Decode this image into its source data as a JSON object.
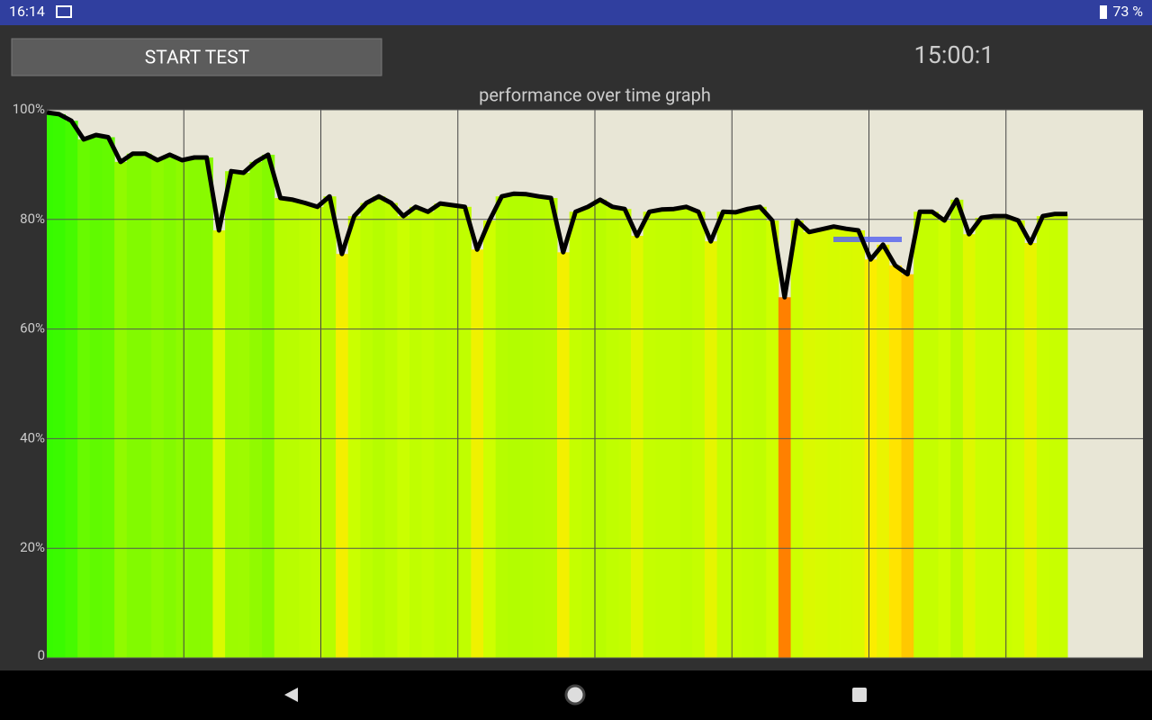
{
  "status_bar": {
    "time": "16:14",
    "battery": "73 %"
  },
  "button": {
    "label": "START TEST"
  },
  "timer": "15:00:1",
  "chart_data": {
    "type": "area-line",
    "title": "performance over time graph",
    "ylim": [
      0,
      100
    ],
    "yticks": [
      0,
      {
        "value": 20,
        "label": "20%"
      },
      {
        "value": 40,
        "label": "40%"
      },
      {
        "value": 60,
        "label": "60%"
      },
      {
        "value": 80,
        "label": "80%"
      },
      {
        "value": 100,
        "label": "100%"
      }
    ],
    "grid": true,
    "line_color": "#000000",
    "values": [
      99.5,
      99.2,
      98,
      94.6,
      95.4,
      95,
      90.5,
      92,
      92,
      90.8,
      91.8,
      90.8,
      91.3,
      91.3,
      78,
      88.8,
      88.5,
      90.5,
      91.8,
      83.9,
      83.6,
      83,
      82.3,
      84.2,
      73.7,
      80.6,
      83,
      84.2,
      83,
      80.6,
      82.3,
      81.4,
      82.9,
      82.6,
      82.3,
      74.5,
      79.8,
      84.2,
      84.7,
      84.6,
      84.2,
      83.9,
      74,
      81.4,
      82.3,
      83.6,
      82.3,
      81.9,
      77,
      81.4,
      81.8,
      81.9,
      82.3,
      81.4,
      76,
      81.4,
      81.3,
      81.9,
      82.3,
      79.8,
      65.8,
      79.8,
      77.7,
      78.2,
      78.7,
      78.3,
      78,
      72.7,
      75.4,
      71.6,
      70,
      81.4,
      81.4,
      79.8,
      83.6,
      77.3,
      80.3,
      80.6,
      80.6,
      79.8,
      75.7,
      80.6,
      81,
      81
    ]
  }
}
